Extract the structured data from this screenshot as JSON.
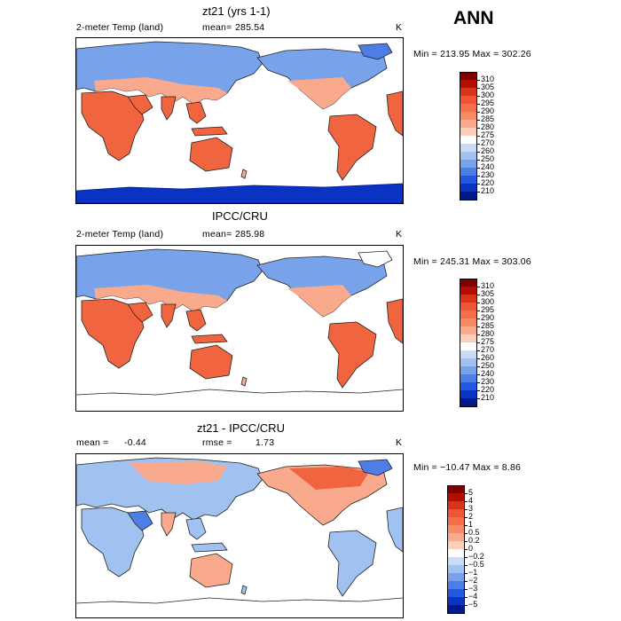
{
  "season": "ANN",
  "units": "K",
  "panels": [
    {
      "title": "zt21 (yrs 1-1)",
      "left_label": "2-meter Temp (land)",
      "mean_label": "mean=",
      "mean_value": "285.54",
      "units": "K",
      "minmax": "Min = 213.95 Max = 302.26",
      "variant": "model",
      "colorbar": {
        "labels": [
          "310",
          "305",
          "300",
          "295",
          "290",
          "285",
          "280",
          "275",
          "270",
          "260",
          "250",
          "240",
          "230",
          "220",
          "210"
        ],
        "colors": [
          "#800000",
          "#b30f00",
          "#d93318",
          "#ee5533",
          "#f46f4a",
          "#f68b68",
          "#f9a98c",
          "#fcd0b8",
          "#ffffff",
          "#c9dbf6",
          "#a1c2f0",
          "#78a3ea",
          "#4d7ee6",
          "#2257e0",
          "#0a33c4",
          "#001a8c"
        ]
      }
    },
    {
      "title": "IPCC/CRU",
      "left_label": "2-meter Temp (land)",
      "mean_label": "mean=",
      "mean_value": "285.98",
      "units": "K",
      "minmax": "Min = 245.31 Max = 303.06",
      "variant": "obs",
      "colorbar": {
        "labels": [
          "310",
          "305",
          "300",
          "295",
          "290",
          "285",
          "280",
          "275",
          "270",
          "260",
          "250",
          "240",
          "230",
          "220",
          "210"
        ],
        "colors": [
          "#800000",
          "#b30f00",
          "#d93318",
          "#ee5533",
          "#f46f4a",
          "#f68b68",
          "#f9a98c",
          "#fcd0b8",
          "#ffffff",
          "#c9dbf6",
          "#a1c2f0",
          "#78a3ea",
          "#4d7ee6",
          "#2257e0",
          "#0a33c4",
          "#001a8c"
        ]
      }
    },
    {
      "title": "zt21 - IPCC/CRU",
      "left_label": "mean =",
      "mean_label": "rmse =",
      "left_value": "-0.44",
      "mean_value": "1.73",
      "units": "K",
      "minmax": "Min = −10.47 Max =    8.86",
      "variant": "diff",
      "colorbar": {
        "labels": [
          "5",
          "4",
          "3",
          "2",
          "1",
          "0.5",
          "0.2",
          "0",
          "−0.2",
          "−0.5",
          "−1",
          "−2",
          "−3",
          "−4",
          "−5"
        ],
        "colors": [
          "#800000",
          "#b30f00",
          "#d93318",
          "#ee5533",
          "#f46f4a",
          "#f68b68",
          "#f9a98c",
          "#fcd0b8",
          "#ffffff",
          "#c9dbf6",
          "#a1c2f0",
          "#78a3ea",
          "#4d7ee6",
          "#2257e0",
          "#0a33c4",
          "#001a8c"
        ]
      }
    }
  ]
}
